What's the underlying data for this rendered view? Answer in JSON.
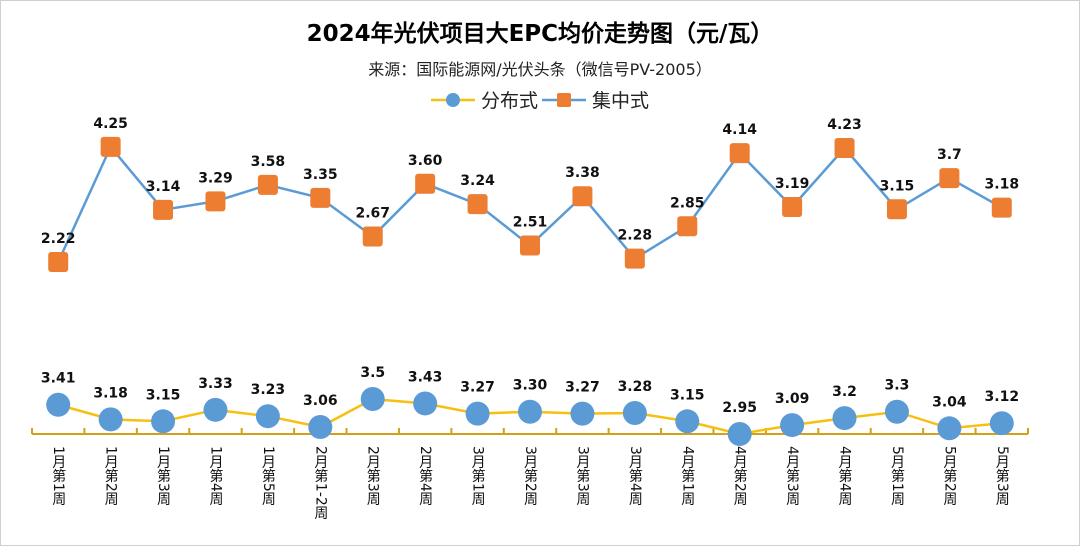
{
  "chart_data": {
    "type": "line",
    "title": "2024年光伏项目大EPC均价走势图（元/瓦）",
    "subtitle": "来源：国际能源网/光伏头条（微信号PV-2005）",
    "legend_position": "top",
    "grid": false,
    "categories": [
      "1月第1周",
      "1月第2周",
      "1月第3周",
      "1月第4周",
      "1月第5周",
      "2月第1-2周",
      "2月第3周",
      "2月第4周",
      "3月第1周",
      "3月第2周",
      "3月第3周",
      "3月第4周",
      "4月第1周",
      "4月第2周",
      "4月第3周",
      "4月第4周",
      "5月第1周",
      "5月第2周",
      "5月第3周"
    ],
    "series": [
      {
        "name": "分布式",
        "marker": "circle",
        "line_color": "#f5c010",
        "marker_color": "#5b9bd5",
        "values": [
          3.41,
          3.18,
          3.15,
          3.33,
          3.23,
          3.06,
          3.5,
          3.43,
          3.27,
          3.3,
          3.27,
          3.28,
          3.15,
          2.95,
          3.09,
          3.2,
          3.3,
          3.04,
          3.12
        ],
        "labels": [
          "3.41",
          "3.18",
          "3.15",
          "3.33",
          "3.23",
          "3.06",
          "3.5",
          "3.43",
          "3.27",
          "3.30",
          "3.27",
          "3.28",
          "3.15",
          "2.95",
          "3.09",
          "3.2",
          "3.3",
          "3.04",
          "3.12"
        ]
      },
      {
        "name": "集中式",
        "marker": "square",
        "line_color": "#5b9bd5",
        "marker_color": "#ed7d31",
        "values": [
          2.22,
          4.25,
          3.14,
          3.29,
          3.58,
          3.35,
          2.67,
          3.6,
          3.24,
          2.51,
          3.38,
          2.28,
          2.85,
          4.14,
          3.19,
          4.23,
          3.15,
          3.7,
          3.18
        ],
        "labels": [
          "2.22",
          "4.25",
          "3.14",
          "3.29",
          "3.58",
          "3.35",
          "2.67",
          "3.60",
          "3.24",
          "2.51",
          "3.38",
          "2.28",
          "2.85",
          "4.14",
          "3.19",
          "4.23",
          "3.15",
          "3.7",
          "3.18"
        ]
      }
    ],
    "axis_color": "#d4a017"
  }
}
